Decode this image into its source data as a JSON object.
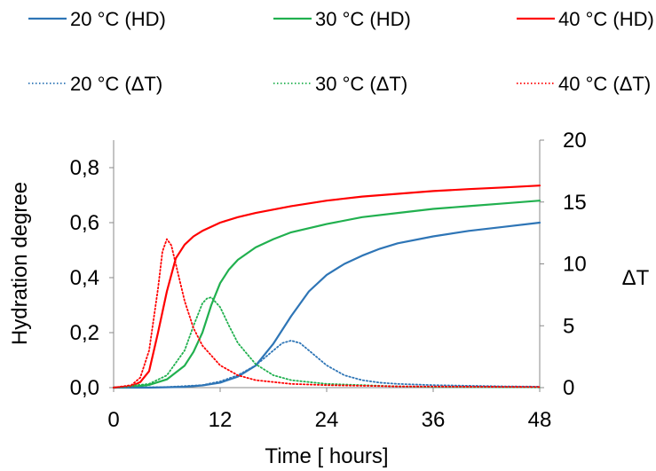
{
  "chart_data": {
    "type": "line",
    "xlabel": "Time [ hours]",
    "ylabel_left": "Hydration degree",
    "ylabel_right": "ΔT",
    "x_range": [
      0,
      48
    ],
    "y_left_range": [
      0,
      0.9
    ],
    "y_right_range": [
      0,
      20
    ],
    "x_ticks": [
      "0",
      "12",
      "24",
      "36",
      "48"
    ],
    "y_left_ticks": [
      "0,0",
      "0,2",
      "0,4",
      "0,6",
      "0,8"
    ],
    "y_right_ticks": [
      "0",
      "5",
      "10",
      "15",
      "20"
    ],
    "grid": false,
    "legend_position": "top",
    "series": [
      {
        "name": "20 °C (HD)",
        "axis": "left",
        "style": "solid",
        "color": "#2e75b6",
        "x": [
          0,
          4,
          8,
          10,
          12,
          14,
          16,
          18,
          20,
          22,
          24,
          26,
          28,
          30,
          32,
          36,
          40,
          44,
          48
        ],
        "y": [
          0.0,
          0.0,
          0.003,
          0.008,
          0.018,
          0.04,
          0.08,
          0.16,
          0.26,
          0.35,
          0.41,
          0.45,
          0.48,
          0.505,
          0.525,
          0.55,
          0.57,
          0.585,
          0.6
        ]
      },
      {
        "name": "30 °C (HD)",
        "axis": "left",
        "style": "solid",
        "color": "#21b04f",
        "x": [
          0,
          2,
          4,
          6,
          8,
          9,
          10,
          11,
          12,
          13,
          14,
          16,
          18,
          20,
          24,
          28,
          32,
          36,
          40,
          44,
          48
        ],
        "y": [
          0.0,
          0.002,
          0.01,
          0.03,
          0.08,
          0.13,
          0.2,
          0.3,
          0.38,
          0.43,
          0.465,
          0.51,
          0.54,
          0.565,
          0.595,
          0.62,
          0.635,
          0.65,
          0.66,
          0.67,
          0.68
        ]
      },
      {
        "name": "40 °C (HD)",
        "axis": "left",
        "style": "solid",
        "color": "#ff0000",
        "x": [
          0,
          2,
          3,
          4,
          5,
          6,
          7,
          8,
          9,
          10,
          12,
          14,
          16,
          20,
          24,
          28,
          32,
          36,
          40,
          44,
          48
        ],
        "y": [
          0.0,
          0.005,
          0.02,
          0.06,
          0.2,
          0.35,
          0.47,
          0.52,
          0.55,
          0.57,
          0.6,
          0.62,
          0.635,
          0.66,
          0.68,
          0.695,
          0.705,
          0.715,
          0.722,
          0.728,
          0.735
        ]
      },
      {
        "name": "20 °C (ΔT)",
        "axis": "right",
        "style": "dotted",
        "color": "#2e75b6",
        "x": [
          0,
          6,
          10,
          12,
          14,
          16,
          18,
          19,
          20,
          21,
          22,
          24,
          26,
          28,
          30,
          32,
          36,
          40,
          44,
          48
        ],
        "y": [
          0.0,
          0.05,
          0.2,
          0.5,
          1.0,
          1.8,
          3.0,
          3.6,
          3.8,
          3.6,
          3.0,
          1.8,
          1.0,
          0.6,
          0.4,
          0.3,
          0.2,
          0.15,
          0.1,
          0.08
        ]
      },
      {
        "name": "30 °C (ΔT)",
        "axis": "right",
        "style": "dotted",
        "color": "#21b04f",
        "x": [
          0,
          4,
          6,
          8,
          9,
          10,
          10.5,
          11,
          12,
          13,
          14,
          16,
          18,
          20,
          24,
          28,
          32,
          36,
          48
        ],
        "y": [
          0.0,
          0.3,
          1.0,
          3.0,
          5.0,
          6.8,
          7.2,
          7.3,
          6.5,
          5.0,
          3.6,
          1.9,
          1.0,
          0.6,
          0.3,
          0.2,
          0.1,
          0.05,
          0.02
        ]
      },
      {
        "name": "40 °C (ΔT)",
        "axis": "right",
        "style": "dotted",
        "color": "#ff0000",
        "x": [
          0,
          2,
          3,
          4,
          5,
          5.5,
          6,
          6.5,
          7,
          8,
          9,
          10,
          12,
          14,
          16,
          20,
          24,
          32,
          48
        ],
        "y": [
          0.0,
          0.2,
          0.8,
          3.0,
          8.0,
          11.0,
          12.0,
          11.5,
          10.0,
          7.0,
          4.8,
          3.4,
          1.8,
          1.0,
          0.6,
          0.3,
          0.2,
          0.1,
          0.05
        ]
      }
    ]
  }
}
